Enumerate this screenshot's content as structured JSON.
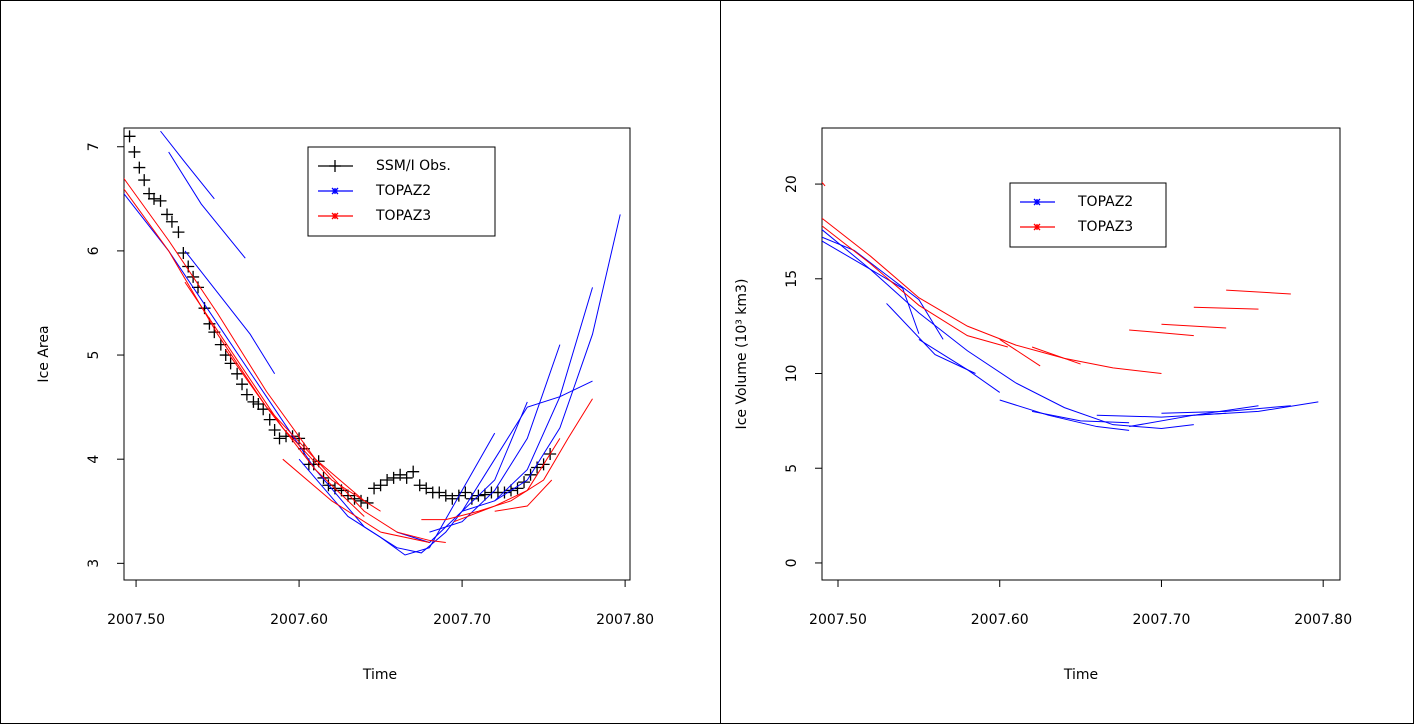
{
  "chart_data": [
    {
      "type": "line",
      "xlabel": "Time",
      "ylabel": "Ice Area",
      "xlim": [
        2007.4926,
        2007.803
      ],
      "ylim": [
        2.84,
        7.18
      ],
      "xticks": [
        {
          "value": 2007.5,
          "label": "2007.50"
        },
        {
          "value": 2007.6,
          "label": "2007.60"
        },
        {
          "value": 2007.7,
          "label": "2007.70"
        },
        {
          "value": 2007.8,
          "label": "2007.80"
        }
      ],
      "yticks": [
        3,
        4,
        5,
        6,
        7
      ],
      "legend": "top-center",
      "series": [
        {
          "name": "SSM/I Obs.",
          "color": "#000000",
          "marker": "+",
          "x": [
            2007.496,
            2007.499,
            2007.502,
            2007.505,
            2007.508,
            2007.511,
            2007.515,
            2007.519,
            2007.522,
            2007.526,
            2007.529,
            2007.532,
            2007.535,
            2007.538,
            2007.542,
            2007.545,
            2007.548,
            2007.552,
            2007.555,
            2007.558,
            2007.562,
            2007.565,
            2007.568,
            2007.572,
            2007.575,
            2007.578,
            2007.582,
            2007.585,
            2007.588,
            2007.592,
            2007.596,
            2007.6,
            2007.603,
            2007.606,
            2007.609,
            2007.612,
            2007.615,
            2007.618,
            2007.622,
            2007.626,
            2007.63,
            2007.634,
            2007.638,
            2007.642,
            2007.646,
            2007.65,
            2007.654,
            2007.658,
            2007.662,
            2007.666,
            2007.67,
            2007.674,
            2007.678,
            2007.682,
            2007.686,
            2007.69,
            2007.694,
            2007.698,
            2007.702,
            2007.706,
            2007.71,
            2007.714,
            2007.718,
            2007.722,
            2007.726,
            2007.73,
            2007.734,
            2007.738,
            2007.742,
            2007.746,
            2007.75,
            2007.754
          ],
          "values": [
            7.1,
            6.95,
            6.8,
            6.68,
            6.55,
            6.5,
            6.48,
            6.35,
            6.28,
            6.18,
            5.98,
            5.85,
            5.75,
            5.65,
            5.45,
            5.3,
            5.22,
            5.1,
            5.0,
            4.92,
            4.82,
            4.72,
            4.62,
            4.55,
            4.53,
            4.48,
            4.38,
            4.28,
            4.2,
            4.22,
            4.22,
            4.2,
            4.1,
            3.95,
            3.95,
            3.98,
            3.82,
            3.75,
            3.72,
            3.7,
            3.65,
            3.62,
            3.6,
            3.58,
            3.72,
            3.75,
            3.8,
            3.82,
            3.85,
            3.82,
            3.88,
            3.75,
            3.72,
            3.68,
            3.68,
            3.65,
            3.62,
            3.65,
            3.68,
            3.62,
            3.65,
            3.66,
            3.68,
            3.68,
            3.68,
            3.7,
            3.72,
            3.78,
            3.85,
            3.92,
            3.95,
            4.05
          ]
        },
        {
          "name": "TOPAZ2",
          "color": "#0000ff",
          "marker": "*",
          "segments": [
            {
              "x": [
                2007.515,
                2007.53,
                2007.548
              ],
              "values": [
                7.15,
                6.85,
                6.5
              ]
            },
            {
              "x": [
                2007.52,
                2007.54,
                2007.567
              ],
              "values": [
                6.95,
                6.45,
                5.93
              ]
            },
            {
              "x": [
                2007.53,
                2007.55,
                2007.57,
                2007.585
              ],
              "values": [
                6.0,
                5.6,
                5.2,
                4.82
              ]
            },
            {
              "x": [
                2007.49,
                2007.52,
                2007.55,
                2007.58,
                2007.61,
                2007.64,
                2007.66,
                2007.675,
                2007.69,
                2007.7,
                2007.72,
                2007.74,
                2007.76,
                2007.78
              ],
              "values": [
                6.6,
                6.0,
                5.3,
                4.6,
                3.9,
                3.35,
                3.15,
                3.1,
                3.3,
                3.5,
                4.0,
                4.5,
                4.6,
                4.75
              ]
            },
            {
              "x": [
                2007.6,
                2007.63,
                2007.65,
                2007.665,
                2007.68,
                2007.7,
                2007.72
              ],
              "values": [
                4.0,
                3.45,
                3.25,
                3.08,
                3.15,
                3.7,
                4.25
              ]
            },
            {
              "x": [
                2007.66,
                2007.68,
                2007.7,
                2007.72,
                2007.74
              ],
              "values": [
                3.3,
                3.2,
                3.5,
                3.8,
                4.55
              ]
            },
            {
              "x": [
                2007.68,
                2007.7,
                2007.72,
                2007.74,
                2007.76
              ],
              "values": [
                3.3,
                3.4,
                3.7,
                4.2,
                5.1
              ]
            },
            {
              "x": [
                2007.7,
                2007.72,
                2007.74,
                2007.76,
                2007.78
              ],
              "values": [
                3.5,
                3.6,
                3.9,
                4.6,
                5.65
              ]
            },
            {
              "x": [
                2007.72,
                2007.74,
                2007.76,
                2007.78,
                2007.797
              ],
              "values": [
                3.6,
                3.8,
                4.3,
                5.2,
                6.35
              ]
            }
          ]
        },
        {
          "name": "TOPAZ3",
          "color": "#ff0000",
          "marker": "*",
          "segments": [
            {
              "x": [
                2007.49,
                2007.52,
                2007.55,
                2007.58,
                2007.61,
                2007.64,
                2007.66,
                2007.68,
                2007.69
              ],
              "values": [
                6.75,
                6.1,
                5.4,
                4.65,
                4.0,
                3.5,
                3.3,
                3.22,
                3.2
              ]
            },
            {
              "x": [
                2007.49,
                2007.52,
                2007.55,
                2007.58,
                2007.61,
                2007.64
              ],
              "values": [
                6.65,
                6.0,
                5.2,
                4.5,
                3.9,
                3.45
              ]
            },
            {
              "x": [
                2007.53,
                2007.56,
                2007.59,
                2007.62,
                2007.65
              ],
              "values": [
                5.7,
                5.0,
                4.3,
                3.8,
                3.5
              ]
            },
            {
              "x": [
                2007.555,
                2007.58,
                2007.61,
                2007.64
              ],
              "values": [
                5.05,
                4.5,
                4.0,
                3.6
              ]
            },
            {
              "x": [
                2007.59,
                2007.62,
                2007.65,
                2007.68
              ],
              "values": [
                4.0,
                3.6,
                3.3,
                3.2
              ]
            },
            {
              "x": [
                2007.675,
                2007.69,
                2007.71,
                2007.73,
                2007.75,
                2007.765,
                2007.78
              ],
              "values": [
                3.42,
                3.42,
                3.5,
                3.6,
                3.8,
                4.2,
                4.58
              ]
            },
            {
              "x": [
                2007.695,
                2007.72,
                2007.74,
                2007.76
              ],
              "values": [
                3.4,
                3.55,
                3.7,
                4.2
              ]
            },
            {
              "x": [
                2007.72,
                2007.74,
                2007.755
              ],
              "values": [
                3.5,
                3.55,
                3.8
              ]
            }
          ]
        }
      ]
    },
    {
      "type": "line",
      "xlabel": "Time",
      "ylabel": "Ice Volume (10³ km3)",
      "xlim": [
        2007.4901,
        2007.8104
      ],
      "ylim": [
        -0.9,
        22.96
      ],
      "xticks": [
        {
          "value": 2007.5,
          "label": "2007.50"
        },
        {
          "value": 2007.6,
          "label": "2007.60"
        },
        {
          "value": 2007.7,
          "label": "2007.70"
        },
        {
          "value": 2007.8,
          "label": "2007.80"
        }
      ],
      "yticks": [
        0,
        5,
        10,
        15,
        20
      ],
      "legend": "top-center",
      "series": [
        {
          "name": "TOPAZ2",
          "color": "#0000ff",
          "marker": "*",
          "segments": [
            {
              "x": [
                2007.49,
                2007.52,
                2007.55,
                2007.58,
                2007.61,
                2007.64,
                2007.67,
                2007.7,
                2007.72
              ],
              "values": [
                17.6,
                15.5,
                13.2,
                11.2,
                9.5,
                8.2,
                7.3,
                7.1,
                7.3
              ]
            },
            {
              "x": [
                2007.49,
                2007.51,
                2007.53,
                2007.55,
                2007.565
              ],
              "values": [
                17.2,
                16.5,
                15.2,
                13.9,
                11.8
              ]
            },
            {
              "x": [
                2007.49,
                2007.51,
                2007.54,
                2007.55
              ],
              "values": [
                17.0,
                16.0,
                14.5,
                12.1
              ]
            },
            {
              "x": [
                2007.53,
                2007.56,
                2007.585
              ],
              "values": [
                13.7,
                11.0,
                10.0
              ]
            },
            {
              "x": [
                2007.55,
                2007.58,
                2007.6
              ],
              "values": [
                11.8,
                10.2,
                9.0
              ]
            },
            {
              "x": [
                2007.6,
                2007.63,
                2007.66,
                2007.68
              ],
              "values": [
                8.6,
                7.8,
                7.2,
                7.0
              ]
            },
            {
              "x": [
                2007.62,
                2007.65,
                2007.68
              ],
              "values": [
                8.0,
                7.5,
                7.4
              ]
            },
            {
              "x": [
                2007.66,
                2007.7,
                2007.74
              ],
              "values": [
                7.8,
                7.7,
                7.9
              ]
            },
            {
              "x": [
                2007.68,
                2007.72,
                2007.76
              ],
              "values": [
                7.2,
                7.8,
                8.3
              ]
            },
            {
              "x": [
                2007.7,
                2007.74,
                2007.78
              ],
              "values": [
                7.9,
                8.0,
                8.3
              ]
            },
            {
              "x": [
                2007.72,
                2007.76,
                2007.797
              ],
              "values": [
                7.8,
                8.0,
                8.5
              ]
            }
          ]
        },
        {
          "name": "TOPAZ3",
          "color": "#ff0000",
          "marker": "*",
          "segments": [
            {
              "x": [
                2007.49,
                2007.492
              ],
              "values": [
                20.1,
                19.9
              ]
            },
            {
              "x": [
                2007.49,
                2007.52,
                2007.55,
                2007.58,
                2007.61,
                2007.64,
                2007.67,
                2007.7
              ],
              "values": [
                18.2,
                16.2,
                14.0,
                12.5,
                11.5,
                10.8,
                10.3,
                10.0
              ]
            },
            {
              "x": [
                2007.49,
                2007.52,
                2007.55,
                2007.58,
                2007.605
              ],
              "values": [
                17.8,
                15.8,
                13.6,
                12.0,
                11.4
              ]
            },
            {
              "x": [
                2007.6,
                2007.625
              ],
              "values": [
                11.8,
                10.4
              ]
            },
            {
              "x": [
                2007.62,
                2007.65
              ],
              "values": [
                11.4,
                10.5
              ]
            },
            {
              "x": [
                2007.68,
                2007.72
              ],
              "values": [
                12.3,
                12.0
              ]
            },
            {
              "x": [
                2007.7,
                2007.74
              ],
              "values": [
                12.6,
                12.4
              ]
            },
            {
              "x": [
                2007.72,
                2007.76
              ],
              "values": [
                13.5,
                13.4
              ]
            },
            {
              "x": [
                2007.74,
                2007.78
              ],
              "values": [
                14.4,
                14.2
              ]
            }
          ]
        }
      ]
    }
  ]
}
